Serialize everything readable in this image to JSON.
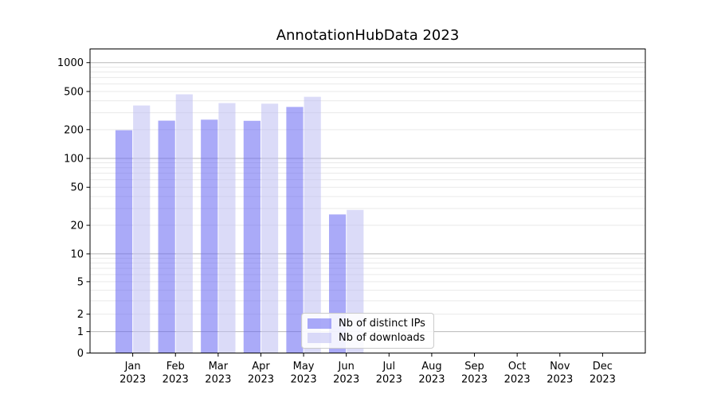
{
  "chart_data": {
    "type": "bar",
    "title": "AnnotationHubData 2023",
    "categories": [
      "Jan",
      "Feb",
      "Mar",
      "Apr",
      "May",
      "Jun",
      "Jul",
      "Aug",
      "Sep",
      "Oct",
      "Nov",
      "Dec"
    ],
    "category_year": "2023",
    "xlabel": "",
    "ylabel": "",
    "yscale": "asinh-log",
    "ylim": [
      0,
      1390
    ],
    "yticks": [
      0,
      1,
      2,
      5,
      10,
      20,
      50,
      100,
      200,
      500,
      1000
    ],
    "grid": true,
    "legend_position": "lower-center-inside",
    "series": [
      {
        "name": "Nb of distinct IPs",
        "fill": "rgba(100,100,243,0.55)",
        "values": [
          197,
          248,
          254,
          247,
          345,
          26,
          0,
          0,
          0,
          0,
          0,
          0
        ]
      },
      {
        "name": "Nb of downloads",
        "fill": "rgba(190,190,242,0.55)",
        "values": [
          357,
          467,
          378,
          373,
          440,
          29,
          0,
          0,
          0,
          0,
          0,
          0
        ]
      }
    ],
    "colors": {
      "major_grid": "#b9b9b9",
      "minor_grid": "#e9e9e9",
      "axis": "#000000",
      "text": "#000000"
    }
  }
}
